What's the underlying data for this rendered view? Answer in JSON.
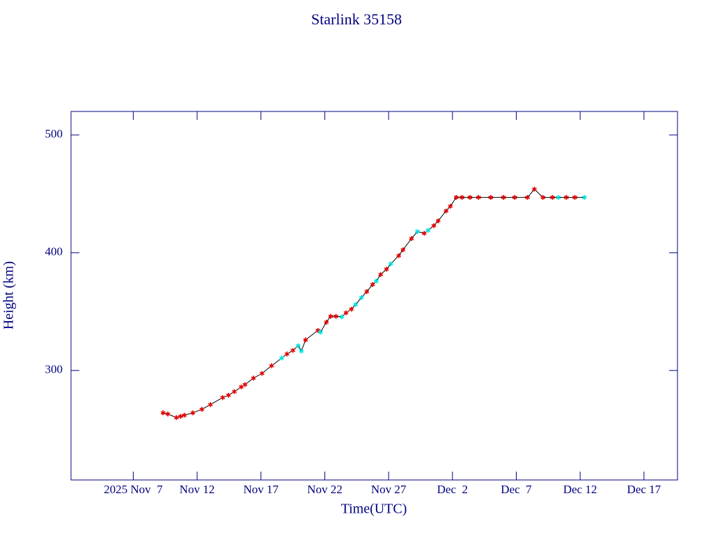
{
  "chart_data": {
    "type": "line",
    "title": "Starlink 35158",
    "xlabel": "Time(UTC)",
    "ylabel": "Height (km)",
    "x": [
      "2025-11-09T08:00",
      "2025-11-09T17:00",
      "2025-11-10T09:00",
      "2025-11-10T17:00",
      "2025-11-11T00:00",
      "2025-11-11T16:00",
      "2025-11-12T09:00",
      "2025-11-13T01:00",
      "2025-11-14T00:00",
      "2025-11-14T11:00",
      "2025-11-14T22:00",
      "2025-11-15T11:00",
      "2025-11-15T18:00",
      "2025-11-16T10:00",
      "2025-11-17T02:00",
      "2025-11-17T20:00",
      "2025-11-18T15:00",
      "2025-11-19T01:00",
      "2025-11-19T12:00",
      "2025-11-19T22:00",
      "2025-11-20T04:00",
      "2025-11-20T12:00",
      "2025-11-21T11:00",
      "2025-11-21T16:00",
      "2025-11-22T03:00",
      "2025-11-22T11:00",
      "2025-11-22T21:00",
      "2025-11-23T08:00",
      "2025-11-23T16:00",
      "2025-11-24T02:00",
      "2025-11-24T10:00",
      "2025-11-24T21:00",
      "2025-11-25T07:00",
      "2025-11-25T18:00",
      "2025-11-26T01:00",
      "2025-11-26T09:00",
      "2025-11-26T20:00",
      "2025-11-27T04:00",
      "2025-11-27T19:00",
      "2025-11-28T03:00",
      "2025-11-28T19:00",
      "2025-11-29T06:00",
      "2025-11-29T19:00",
      "2025-11-30T02:00",
      "2025-11-30T13:00",
      "2025-11-30T21:00",
      "2025-12-01T12:00",
      "2025-12-01T20:00",
      "2025-12-02T07:00",
      "2025-12-02T18:00",
      "2025-12-03T09:00",
      "2025-12-04T01:00",
      "2025-12-05T00:00",
      "2025-12-06T00:00",
      "2025-12-06T21:00",
      "2025-12-07T21:00",
      "2025-12-08T10:00",
      "2025-12-09T02:00",
      "2025-12-09T20:00",
      "2025-12-10T07:00",
      "2025-12-10T22:00",
      "2025-12-11T14:00",
      "2025-12-12T08:00"
    ],
    "series": [
      {
        "color": "#000000",
        "values": [
          264,
          263,
          260,
          261,
          262,
          264,
          267,
          271,
          277,
          279,
          282,
          286,
          288,
          293.5,
          297.5,
          304,
          310.5,
          314,
          317,
          321,
          316.5,
          326,
          334,
          332.5,
          341,
          346,
          346,
          345.5,
          349,
          352,
          356,
          362,
          367,
          373,
          376,
          381.5,
          386,
          390.5,
          397.5,
          402.5,
          412,
          418,
          416.5,
          419,
          423,
          427,
          435.5,
          439.5,
          447,
          447,
          447,
          447,
          447,
          447,
          447,
          447,
          454,
          447,
          447,
          447,
          447,
          447,
          447
        ],
        "marker_colors": [
          "#e00000",
          "#e00000",
          "#e00000",
          "#e00000",
          "#e00000",
          "#e00000",
          "#e00000",
          "#e00000",
          "#e00000",
          "#e00000",
          "#e00000",
          "#e00000",
          "#e00000",
          "#e00000",
          "#e00000",
          "#e00000",
          "#00e0e0",
          "#e00000",
          "#e00000",
          "#00e0e0",
          "#00e0e0",
          "#e00000",
          "#e00000",
          "#00e0e0",
          "#e00000",
          "#e00000",
          "#e00000",
          "#00e0e0",
          "#e00000",
          "#e00000",
          "#00e0e0",
          "#00e0e0",
          "#e00000",
          "#e00000",
          "#00e0e0",
          "#e00000",
          "#e00000",
          "#00e0e0",
          "#e00000",
          "#e00000",
          "#e00000",
          "#00e0e0",
          "#e00000",
          "#00e0e0",
          "#e00000",
          "#e00000",
          "#e00000",
          "#e00000",
          "#e00000",
          "#e00000",
          "#e00000",
          "#e00000",
          "#e00000",
          "#e00000",
          "#e00000",
          "#e00000",
          "#e00000",
          "#e00000",
          "#e00000",
          "#00e0e0",
          "#e00000",
          "#e00000",
          "#00e0e0"
        ]
      }
    ],
    "xlim": [
      "2025-11-02T03:00",
      "2025-12-19T15:00"
    ],
    "xticks": [
      {
        "value": "2025-11-07T00:00",
        "label": "2025 Nov  7"
      },
      {
        "value": "2025-11-12T00:00",
        "label": "Nov 12"
      },
      {
        "value": "2025-11-17T00:00",
        "label": "Nov 17"
      },
      {
        "value": "2025-11-22T00:00",
        "label": "Nov 22"
      },
      {
        "value": "2025-11-27T00:00",
        "label": "Nov 27"
      },
      {
        "value": "2025-12-02T00:00",
        "label": "Dec  2"
      },
      {
        "value": "2025-12-07T00:00",
        "label": "Dec  7"
      },
      {
        "value": "2025-12-12T00:00",
        "label": "Dec 12"
      },
      {
        "value": "2025-12-17T00:00",
        "label": "Dec 17"
      }
    ],
    "ylim": [
      207,
      520
    ],
    "yticks": [
      300,
      400,
      500
    ],
    "axis_color": "#000080"
  }
}
